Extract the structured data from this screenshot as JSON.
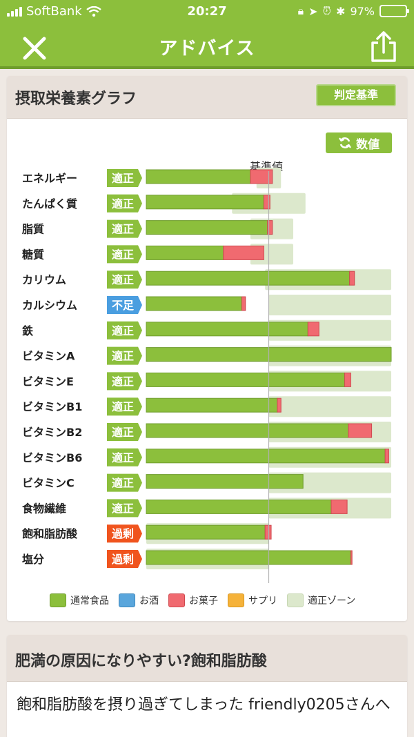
{
  "status_bar": {
    "carrier": "SoftBank",
    "time": "20:27",
    "battery": "97%",
    "battery_level": 0.97
  },
  "nav": {
    "title": "アドバイス",
    "close_icon": "close-icon",
    "share_icon": "share-icon"
  },
  "graph_card": {
    "title": "摂取栄養素グラフ",
    "criteria_button": "判定基準",
    "value_button": "数値",
    "refresh_icon": "refresh-icon",
    "baseline_label": "基準値"
  },
  "colors": {
    "brand": "#8cbf3c",
    "food": "#8cbf3c",
    "alcohol": "#5aa6dc",
    "snack": "#f06a70",
    "supplement": "#f5b23a",
    "zone": "#dce8cc",
    "badge_ok": "#8cbf3c",
    "badge_low": "#4a9ee0",
    "badge_over": "#f0541e"
  },
  "chart_data": {
    "type": "bar",
    "orientation": "horizontal",
    "stacked": true,
    "title": "摂取栄養素グラフ",
    "reference_line": "基準値",
    "legend": [
      "通常食品",
      "お酒",
      "お菓子",
      "サプリ",
      "適正ゾーン"
    ],
    "legend_position": "bottom",
    "categories": [
      "エネルギー",
      "たんぱく質",
      "脂質",
      "糖質",
      "カリウム",
      "カルシウム",
      "鉄",
      "ビタミンA",
      "ビタミンE",
      "ビタミンB1",
      "ビタミンB2",
      "ビタミンB6",
      "ビタミンC",
      "食物繊維",
      "飽和脂肪酸",
      "塩分"
    ],
    "badges": [
      "適正",
      "適正",
      "適正",
      "適正",
      "適正",
      "不足",
      "適正",
      "適正",
      "適正",
      "適正",
      "適正",
      "適正",
      "適正",
      "適正",
      "過剰",
      "過剰"
    ],
    "series": [
      {
        "name": "通常食品",
        "values": [
          0.85,
          0.96,
          0.99,
          0.63,
          1.66,
          0.78,
          1.32,
          2.0,
          1.62,
          1.07,
          1.65,
          1.95,
          1.28,
          1.51,
          0.97,
          1.67
        ]
      },
      {
        "name": "お菓子",
        "values": [
          0.18,
          0.05,
          0.04,
          0.33,
          0.04,
          0.03,
          0.09,
          0.0,
          0.05,
          0.03,
          0.19,
          0.03,
          0.0,
          0.13,
          0.05,
          0.01
        ]
      }
    ],
    "zones": [
      [
        0.9,
        1.1
      ],
      [
        0.7,
        1.3
      ],
      [
        0.85,
        1.2
      ],
      [
        0.85,
        1.2
      ],
      [
        0.97,
        2.0
      ],
      [
        1.0,
        2.0
      ],
      [
        1.0,
        2.0
      ],
      [
        1.0,
        2.0
      ],
      [
        1.0,
        2.0
      ],
      [
        1.0,
        2.0
      ],
      [
        1.0,
        2.0
      ],
      [
        1.0,
        2.0
      ],
      [
        1.0,
        2.0
      ],
      [
        1.0,
        2.0
      ],
      [
        0.0,
        1.0
      ],
      [
        0.0,
        1.0
      ]
    ],
    "xlim": [
      0,
      2.0
    ],
    "baseline": 1.0
  },
  "article_card": {
    "title": "肥満の原因になりやすい?飽和脂肪酸",
    "text": "飽和脂肪酸を摂り過ぎてしまった friendly0205さんへ"
  }
}
